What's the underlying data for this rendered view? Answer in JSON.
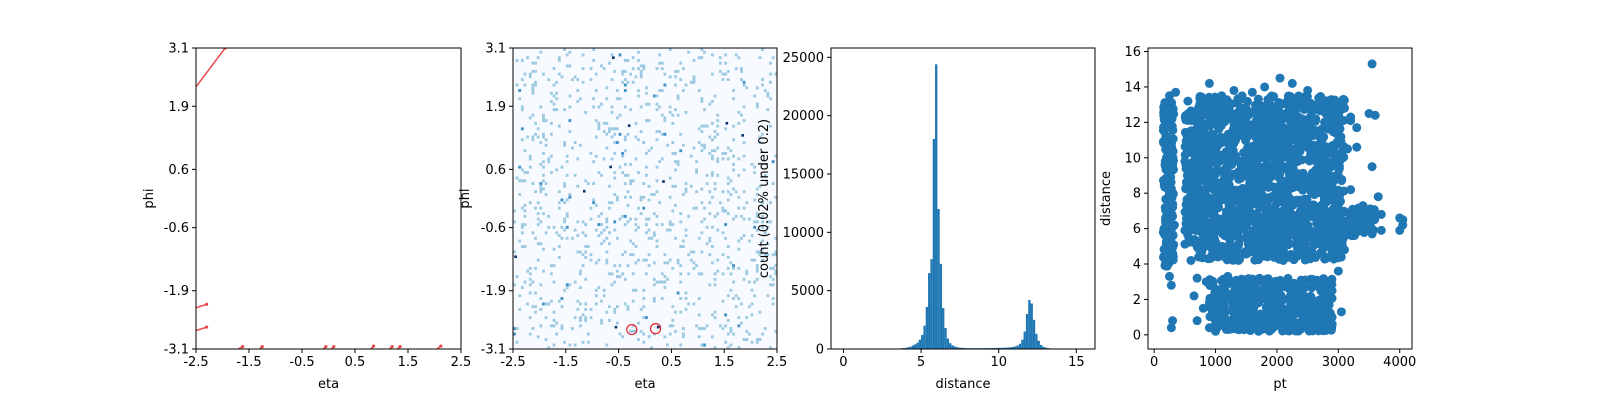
{
  "colors": {
    "accent": "#1f77b4",
    "track": "#e8474a",
    "heat_low": "#f7fbff",
    "heat_mid": "#9ecae1",
    "heat_high": "#08306b"
  },
  "chart_data": [
    {
      "type": "line",
      "xlabel": "eta",
      "ylabel": "phi",
      "xlim": [
        -2.5,
        2.5
      ],
      "ylim": [
        -3.1,
        3.1
      ],
      "x_ticks": [
        "-2.5",
        "-1.5",
        "-0.5",
        "0.5",
        "1.5",
        "2.5"
      ],
      "y_ticks": [
        "-3.1",
        "-1.9",
        "-0.6",
        "0.6",
        "1.9",
        "3.1"
      ],
      "series": [
        {
          "x": [
            -2.5,
            -1.95
          ],
          "y": [
            2.3,
            3.1
          ]
        },
        {
          "x": [
            -2.5,
            -2.3
          ],
          "y": [
            -2.25,
            -2.18
          ]
        },
        {
          "x": [
            -2.5,
            -2.3
          ],
          "y": [
            -2.72,
            -2.65
          ]
        },
        {
          "x": [
            -1.7,
            -1.62
          ],
          "y": [
            -3.1,
            -3.05
          ]
        },
        {
          "x": [
            -1.3,
            -1.25
          ],
          "y": [
            -3.1,
            -3.05
          ]
        },
        {
          "x": [
            -0.1,
            -0.05
          ],
          "y": [
            -3.1,
            -3.05
          ]
        },
        {
          "x": [
            0.05,
            0.1
          ],
          "y": [
            -3.1,
            -3.05
          ]
        },
        {
          "x": [
            0.8,
            0.85
          ],
          "y": [
            -3.1,
            -3.04
          ]
        },
        {
          "x": [
            1.15,
            1.2
          ],
          "y": [
            -3.1,
            -3.05
          ]
        },
        {
          "x": [
            1.3,
            1.35
          ],
          "y": [
            -3.1,
            -3.05
          ]
        },
        {
          "x": [
            2.05,
            2.12
          ],
          "y": [
            -3.1,
            -3.04
          ]
        }
      ]
    },
    {
      "type": "heatmap",
      "xlabel": "eta",
      "ylabel": "phi",
      "xlim": [
        -2.5,
        2.5
      ],
      "ylim": [
        -3.1,
        3.1
      ],
      "x_ticks": [
        "-2.5",
        "-1.5",
        "-0.5",
        "0.5",
        "1.5",
        "2.5"
      ],
      "y_ticks": [
        "-3.1",
        "-1.9",
        "-0.6",
        "0.6",
        "1.9",
        "3.1"
      ],
      "dark_cells": [
        {
          "x": -0.6,
          "y": 2.9
        },
        {
          "x": 1.55,
          "y": 1.55
        },
        {
          "x": -1.15,
          "y": 0.15
        },
        {
          "x": -0.3,
          "y": 1.5
        },
        {
          "x": 1.85,
          "y": 1.3
        },
        {
          "x": -0.55,
          "y": -2.65
        },
        {
          "x": 0.25,
          "y": -2.65
        },
        {
          "x": -0.65,
          "y": 0.65
        },
        {
          "x": 0.35,
          "y": 0.35
        },
        {
          "x": -2.45,
          "y": -1.2
        }
      ],
      "markers": [
        {
          "x": -0.25,
          "y": -2.7
        },
        {
          "x": 0.2,
          "y": -2.68
        }
      ]
    },
    {
      "type": "bar",
      "xlabel": "distance",
      "ylabel": "count (0.02% under 0.2)",
      "xlim": [
        -0.8,
        16.2
      ],
      "ylim": [
        0,
        25800
      ],
      "x_ticks": [
        0,
        5,
        10,
        15
      ],
      "y_ticks": [
        0,
        5000,
        10000,
        15000,
        20000,
        25000
      ],
      "bin_width": 0.15,
      "x": [
        3.5,
        3.65,
        3.8,
        3.95,
        4.1,
        4.25,
        4.4,
        4.55,
        4.7,
        4.85,
        5.0,
        5.15,
        5.3,
        5.45,
        5.6,
        5.75,
        5.9,
        6.05,
        6.2,
        6.35,
        6.5,
        6.65,
        6.8,
        6.95,
        7.1,
        7.25,
        7.4,
        7.55,
        7.7,
        7.85,
        8.0,
        8.15,
        8.3,
        8.45,
        8.6,
        8.75,
        8.9,
        9.05,
        9.2,
        9.35,
        9.5,
        9.65,
        9.8,
        9.95,
        10.1,
        10.25,
        10.4,
        10.55,
        10.7,
        10.85,
        11.0,
        11.15,
        11.3,
        11.45,
        11.6,
        11.75,
        11.9,
        12.05,
        12.2,
        12.35,
        12.5,
        12.65,
        12.8,
        12.95,
        13.1,
        13.25,
        13.4
      ],
      "values": [
        40,
        60,
        80,
        100,
        150,
        200,
        300,
        400,
        550,
        800,
        1200,
        2000,
        3600,
        6500,
        7700,
        18000,
        24400,
        12000,
        7300,
        3500,
        1800,
        900,
        500,
        320,
        220,
        150,
        120,
        100,
        90,
        80,
        70,
        70,
        70,
        70,
        70,
        70,
        70,
        80,
        80,
        80,
        80,
        90,
        90,
        100,
        100,
        110,
        120,
        130,
        150,
        180,
        220,
        300,
        450,
        800,
        1500,
        3000,
        4200,
        3900,
        2500,
        1300,
        700,
        350,
        200,
        120,
        80,
        50,
        30
      ]
    },
    {
      "type": "scatter",
      "xlabel": "pt",
      "ylabel": "distance",
      "xlim": [
        -100,
        4200
      ],
      "ylim": [
        -0.8,
        16.2
      ],
      "x_ticks": [
        0,
        1000,
        2000,
        3000,
        4000
      ],
      "y_ticks": [
        0,
        2,
        4,
        6,
        8,
        10,
        12,
        14,
        16
      ],
      "points": [
        [
          200,
          11.8
        ],
        [
          200,
          10
        ],
        [
          180,
          8.8
        ],
        [
          150,
          5.8
        ],
        [
          220,
          4.1
        ],
        [
          250,
          3.3
        ],
        [
          280,
          0.4
        ],
        [
          300,
          0.8
        ],
        [
          280,
          2.8
        ],
        [
          250,
          13.5
        ],
        [
          350,
          13.7
        ],
        [
          300,
          12.6
        ],
        [
          200,
          6.5
        ],
        [
          300,
          7.2
        ],
        [
          330,
          6.2
        ],
        [
          550,
          13.2
        ],
        [
          700,
          12.6
        ],
        [
          900,
          14.2
        ],
        [
          1100,
          13.5
        ],
        [
          1300,
          13.8
        ],
        [
          1600,
          13.7
        ],
        [
          1800,
          14.0
        ],
        [
          2050,
          14.5
        ],
        [
          2250,
          14.2
        ],
        [
          2500,
          13.8
        ],
        [
          2700,
          13.3
        ],
        [
          2900,
          12.9
        ],
        [
          3100,
          12.8
        ],
        [
          3200,
          12.3
        ],
        [
          3300,
          11.7
        ],
        [
          3500,
          12.5
        ],
        [
          3600,
          12.4
        ],
        [
          3550,
          15.3
        ],
        [
          3550,
          9.5
        ],
        [
          3650,
          7.8
        ],
        [
          3400,
          7.3
        ],
        [
          3700,
          6.8
        ],
        [
          3700,
          5.9
        ],
        [
          3550,
          5.7
        ],
        [
          3250,
          5.6
        ],
        [
          4000,
          6.6
        ],
        [
          4050,
          6.2
        ],
        [
          4000,
          5.9
        ],
        [
          4050,
          6.5
        ],
        [
          500,
          9.8
        ],
        [
          600,
          7.4
        ],
        [
          500,
          5.9
        ],
        [
          600,
          4.2
        ],
        [
          700,
          3.2
        ],
        [
          650,
          2.2
        ],
        [
          700,
          0.8
        ],
        [
          800,
          1.5
        ],
        [
          850,
          3.0
        ],
        [
          900,
          0.4
        ],
        [
          1000,
          0.2
        ],
        [
          1200,
          0.8
        ],
        [
          1350,
          0.4
        ],
        [
          1500,
          1.5
        ],
        [
          1700,
          0.2
        ],
        [
          1900,
          0.9
        ],
        [
          2100,
          0.5
        ],
        [
          2300,
          1.2
        ],
        [
          2500,
          0.4
        ],
        [
          2700,
          1.0
        ],
        [
          2900,
          0.6
        ],
        [
          3050,
          1.3
        ],
        [
          2800,
          2.5
        ],
        [
          1800,
          2.8
        ],
        [
          1500,
          3.1
        ],
        [
          2200,
          2.6
        ],
        [
          1200,
          3.3
        ],
        [
          2600,
          2.9
        ],
        [
          3000,
          3.6
        ],
        [
          3100,
          4.8
        ],
        [
          3200,
          8.2
        ],
        [
          3150,
          10.5
        ],
        [
          3000,
          11.6
        ],
        [
          3300,
          10.6
        ],
        [
          3200,
          12.1
        ]
      ]
    }
  ]
}
